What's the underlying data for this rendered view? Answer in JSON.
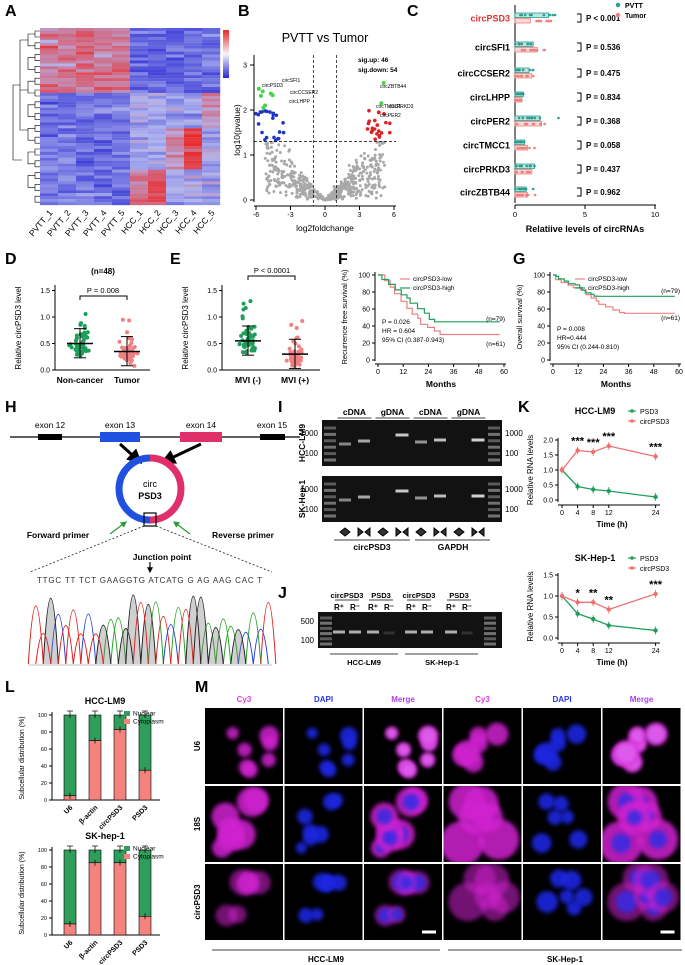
{
  "panel_labels": [
    "A",
    "B",
    "C",
    "D",
    "E",
    "F",
    "G",
    "H",
    "I",
    "J",
    "K",
    "L",
    "M"
  ],
  "A": {
    "samples": [
      "PVTT_1",
      "PVTT_2",
      "PVTT_3",
      "PVTT_4",
      "PVTT_5",
      "HCC_1",
      "HCC_2",
      "HCC_3",
      "HCC_4",
      "HCC_5"
    ]
  },
  "B": {
    "title": "PVTT vs Tumor",
    "sig_up": "sig.up: 46",
    "sig_down": "sig.down: 54",
    "y_label": "log10(pvalue)",
    "x_label": "log2foldchange",
    "x_ticks": [
      "-6",
      "-3",
      "0",
      "3",
      "6"
    ],
    "y_ticks": [
      "0",
      "1",
      "2",
      "3"
    ],
    "genes_down": [
      "circPSD3",
      "circSFI1",
      "circCCSER2",
      "circLHPP"
    ],
    "genes_up": [
      "circZBTB44",
      "circTMCC1",
      "circPER2",
      "circPRKD3"
    ]
  },
  "C": {
    "legend": [
      "PVTT",
      "Tumor"
    ],
    "rows": [
      {
        "name": "circPSD3",
        "p": "P < 0.001"
      },
      {
        "name": "circSFI1",
        "p": "P = 0.536"
      },
      {
        "name": "circCCSER2",
        "p": "P = 0.475"
      },
      {
        "name": "circLHPP",
        "p": "P = 0.834"
      },
      {
        "name": "circPER2",
        "p": "P = 0.368"
      },
      {
        "name": "circTMCC1",
        "p": "P = 0.058"
      },
      {
        "name": "circPRKD3",
        "p": "P = 0.437"
      },
      {
        "name": "circZBTB44",
        "p": "P = 0.962"
      }
    ],
    "x_ticks": [
      "0",
      "5",
      "10"
    ],
    "x_label": "Relatiive  levels of circRNAs"
  },
  "D": {
    "n": "(n=48)",
    "p": "P = 0.008",
    "y_label": "Relative circPSD3 level",
    "y_ticks": [
      "0.0",
      "0.5",
      "1.0",
      "1.5"
    ],
    "groups": [
      "Non-cancer",
      "Tumor"
    ]
  },
  "E": {
    "p": "P < 0.0001",
    "y_label": "Relative circPSD3 level",
    "y_ticks": [
      "0.0",
      "0.5",
      "1.0",
      "1.5"
    ],
    "groups": [
      "MVI (-)",
      "MVI (+)"
    ]
  },
  "F": {
    "legend": [
      "circPSD3-low",
      "circPSD3-high"
    ],
    "y_label": "Recurrence free survival (%)",
    "y_ticks": [
      "0",
      "20",
      "40",
      "60",
      "80",
      "100"
    ],
    "x_ticks": [
      "0",
      "12",
      "24",
      "36",
      "48",
      "60"
    ],
    "x_label": "Months",
    "n_high": "(n=79)",
    "n_low": "(n=61)",
    "stats": [
      "P = 0.026",
      "HR = 0.604",
      "95% CI (0.387-0.943)"
    ]
  },
  "G": {
    "legend": [
      "circPSD3-low",
      "circPSD3-high"
    ],
    "y_label": "Overall survival (%)",
    "y_ticks": [
      "0",
      "20",
      "40",
      "60",
      "80",
      "100"
    ],
    "x_ticks": [
      "0",
      "12",
      "24",
      "36",
      "48",
      "60"
    ],
    "x_label": "Months",
    "n_high": "(n=79)",
    "n_low": "(n=61)",
    "stats": [
      "P = 0.008",
      "HR=0.444",
      "95% CI (0.244-0.810)"
    ]
  },
  "H": {
    "exons": [
      "exon 12",
      "exon 13",
      "exon 14",
      "exon 15"
    ],
    "circ": [
      "circ",
      "PSD3"
    ],
    "forward": "Forward primer",
    "reverse": "Reverse primer",
    "junction": "Junction point",
    "sequence": "TTGC TT TCT GAAGGTG ATCATG G AG AAG CAC T"
  },
  "I": {
    "lanes": [
      "cDNA",
      "gDNA",
      "cDNA",
      "gDNA"
    ],
    "cells": [
      "HCC-LM9",
      "SK-Hep-1"
    ],
    "markers": [
      "1000",
      "100"
    ],
    "genes": [
      "circPSD3",
      "GAPDH"
    ]
  },
  "J": {
    "groups": [
      "circPSD3",
      "PSD3",
      "circPSD3",
      "PSD3"
    ],
    "rnase": [
      "R⁺",
      "R⁻",
      "R⁺",
      "R⁻",
      "R⁺",
      "R⁻",
      "R⁺",
      "R⁻"
    ],
    "markers": [
      "500",
      "100"
    ],
    "cells": [
      "HCC-LM9",
      "SK-Hep-1"
    ]
  },
  "K": {
    "charts": [
      {
        "title": "HCC-LM9",
        "y_ticks": [
          "0.0",
          "0.5",
          "1.0",
          "1.5",
          "2.0"
        ],
        "stars": [
          "***",
          "***",
          "***",
          "***"
        ]
      },
      {
        "title": "SK-Hep-1",
        "y_ticks": [
          "0.0",
          "0.5",
          "1.0",
          "1.5"
        ],
        "stars": [
          "*",
          "**",
          "**",
          "***"
        ]
      }
    ],
    "legend": [
      "PSD3",
      "circPSD3"
    ],
    "y_label": "Relative RNA levels",
    "x_ticks": [
      "0",
      "4",
      "8",
      "12",
      "24"
    ],
    "x_label": "Time (h)"
  },
  "L": {
    "charts": [
      {
        "title": "HCC-LM9"
      },
      {
        "title": "SK-hep-1"
      }
    ],
    "legend": [
      "Nuclear",
      "Cytoplasm"
    ],
    "y_label": "Subcellular distribution (%)",
    "y_ticks": [
      "0",
      "20",
      "40",
      "60",
      "80",
      "100"
    ],
    "categories": [
      "U6",
      "β-actin",
      "circPSD3",
      "PSD3"
    ]
  },
  "M": {
    "columns": [
      "Cy3",
      "DAPI",
      "Merge",
      "Cy3",
      "DAPI",
      "Merge"
    ],
    "rows": [
      "U6",
      "18S",
      "circPSD3"
    ],
    "cells": [
      "HCC-LM9",
      "SK-Hep-1"
    ]
  }
}
